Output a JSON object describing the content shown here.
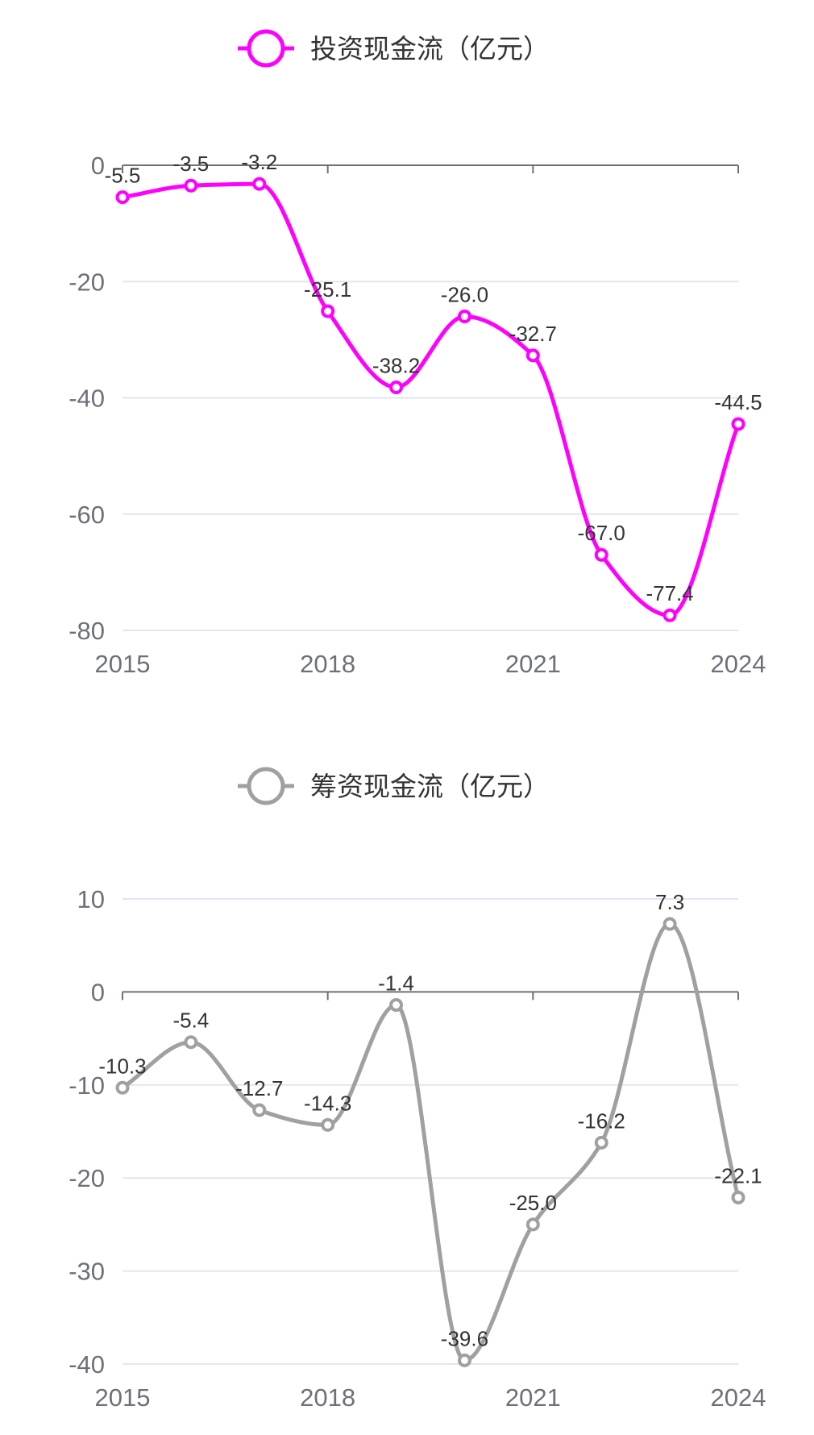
{
  "chart_data": [
    {
      "type": "line",
      "smooth": true,
      "legend": "投资现金流（亿元）",
      "legend_position": "top-center",
      "color": "#ff00ff",
      "x": [
        2015,
        2016,
        2017,
        2018,
        2019,
        2020,
        2021,
        2022,
        2023,
        2024
      ],
      "x_tick_labels": [
        "2015",
        "2018",
        "2021",
        "2024"
      ],
      "values": [
        -5.5,
        -3.5,
        -3.2,
        -25.1,
        -38.2,
        -26.0,
        -32.7,
        -67.0,
        -77.4,
        -44.5
      ],
      "data_labels": [
        "-5.5",
        "-3.5",
        "-3.2",
        "-25.1",
        "-38.2",
        "-26.0",
        "-32.7",
        "-67.0",
        "-77.4",
        "-44.5"
      ],
      "y_ticks": [
        0,
        -20,
        -40,
        -60,
        -80
      ],
      "ylim": [
        -80,
        0
      ],
      "grid": true
    },
    {
      "type": "line",
      "smooth": true,
      "legend": "筹资现金流（亿元）",
      "legend_position": "top-center",
      "color": "#a0a0a0",
      "x": [
        2015,
        2016,
        2017,
        2018,
        2019,
        2020,
        2021,
        2022,
        2023,
        2024
      ],
      "x_tick_labels": [
        "2015",
        "2018",
        "2021",
        "2024"
      ],
      "values": [
        -10.3,
        -5.4,
        -12.7,
        -14.3,
        -1.4,
        -39.6,
        -25.0,
        -16.2,
        7.3,
        -22.1
      ],
      "data_labels": [
        "-10.3",
        "-5.4",
        "-12.7",
        "-14.3",
        "-1.4",
        "-39.6",
        "-25.0",
        "-16.2",
        "7.3",
        "-22.1"
      ],
      "y_ticks": [
        10,
        0,
        -10,
        -20,
        -30,
        -40
      ],
      "ylim": [
        -40,
        10
      ],
      "grid": true
    }
  ]
}
